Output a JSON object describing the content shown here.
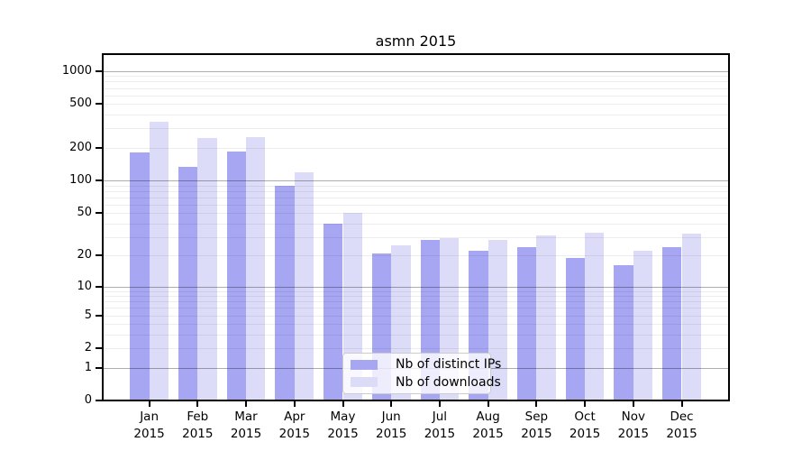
{
  "chart_data": {
    "type": "bar",
    "title": "asmn 2015",
    "categories": [
      "Jan",
      "Feb",
      "Mar",
      "Apr",
      "May",
      "Jun",
      "Jul",
      "Aug",
      "Sep",
      "Oct",
      "Nov",
      "Dec"
    ],
    "year_label": "2015",
    "series": [
      {
        "name": "Nb of distinct IPs",
        "color": "#a6a6f2",
        "values": [
          180,
          133,
          185,
          89,
          40,
          21,
          28,
          22,
          24,
          19,
          16,
          24
        ]
      },
      {
        "name": "Nb of downloads",
        "color": "#dcdcf9",
        "values": [
          342,
          247,
          250,
          119,
          50,
          25,
          29,
          28,
          31,
          33,
          22,
          32
        ]
      }
    ],
    "xlabel": "",
    "ylabel": "",
    "yscale": "log1p",
    "yticks": [
      0,
      1,
      2,
      5,
      10,
      20,
      50,
      100,
      200,
      500,
      1000
    ],
    "ylim": [
      0,
      1450
    ],
    "grid": "horizontal major (1,10,100,1000 dark) + minor (2-9 per decade, faint)",
    "legend_position": "lower center inside plot"
  }
}
